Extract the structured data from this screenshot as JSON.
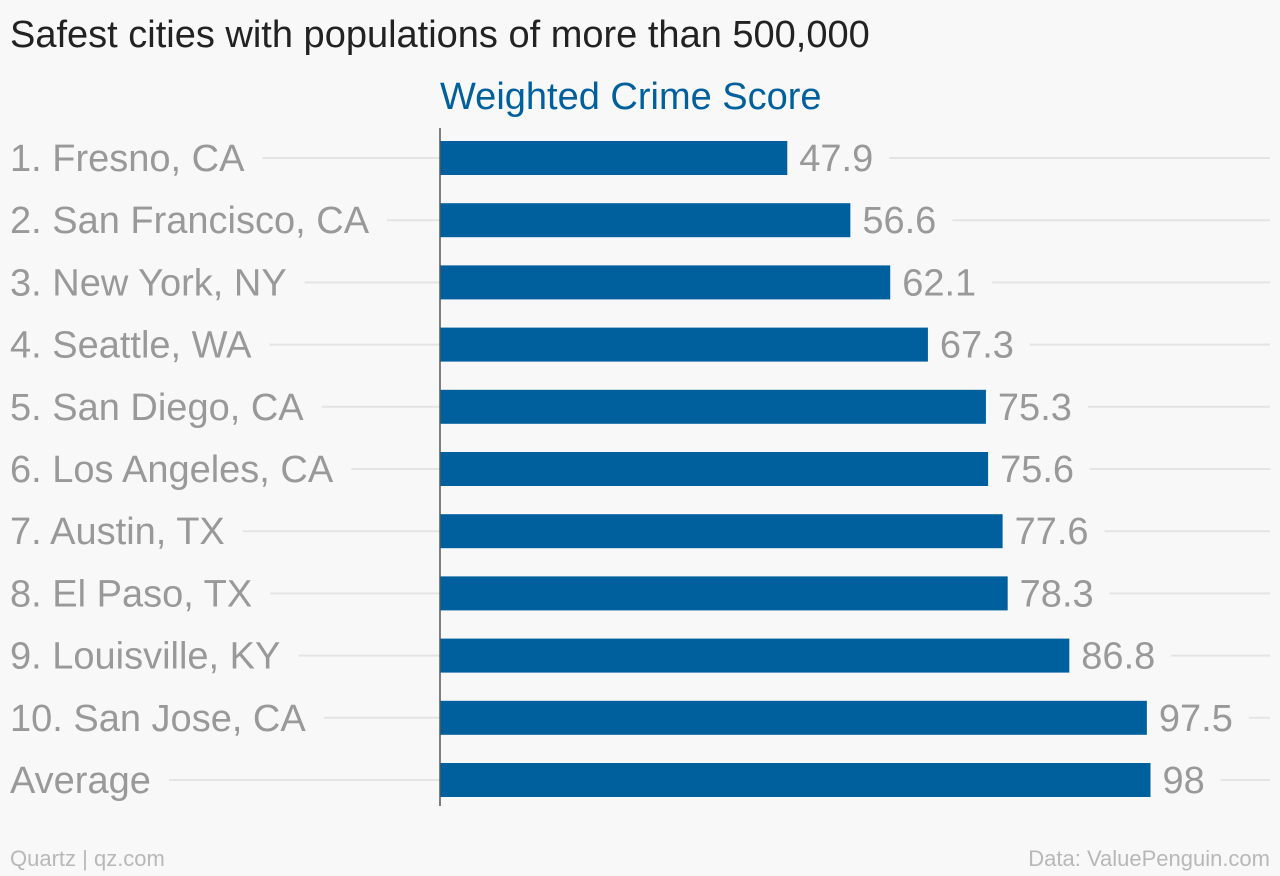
{
  "title": "Safest cities with populations of more than 500,000",
  "footer": {
    "source_left": "Quartz | qz.com",
    "source_right": "Data: ValuePenguin.com"
  },
  "colors": {
    "bar": "#00609e",
    "series_title": "#00609e",
    "category_label": "#999999",
    "value_label": "#999999",
    "gridline": "#e4e4e4",
    "axis": "#555555"
  },
  "chart_data": {
    "type": "bar",
    "orientation": "horizontal",
    "series": [
      {
        "name": "Weighted Crime Score",
        "values": [
          47.9,
          56.6,
          62.1,
          67.3,
          75.3,
          75.6,
          77.6,
          78.3,
          86.8,
          97.5,
          98
        ]
      }
    ],
    "categories": [
      "1. Fresno, CA",
      "2. San Francisco, CA",
      "3. New York, NY",
      "4. Seattle, WA",
      "5. San Diego, CA",
      "6. Los Angeles, CA",
      "7. Austin, TX",
      "8. El Paso, TX",
      "9. Louisville, KY",
      "10. San Jose, CA",
      "Average"
    ],
    "data_labels": [
      "47.9",
      "56.6",
      "62.1",
      "67.3",
      "75.3",
      "75.6",
      "77.6",
      "78.3",
      "86.8",
      "97.5",
      "98"
    ],
    "xlim": [
      0,
      100
    ],
    "grid": true,
    "legend": "none"
  }
}
